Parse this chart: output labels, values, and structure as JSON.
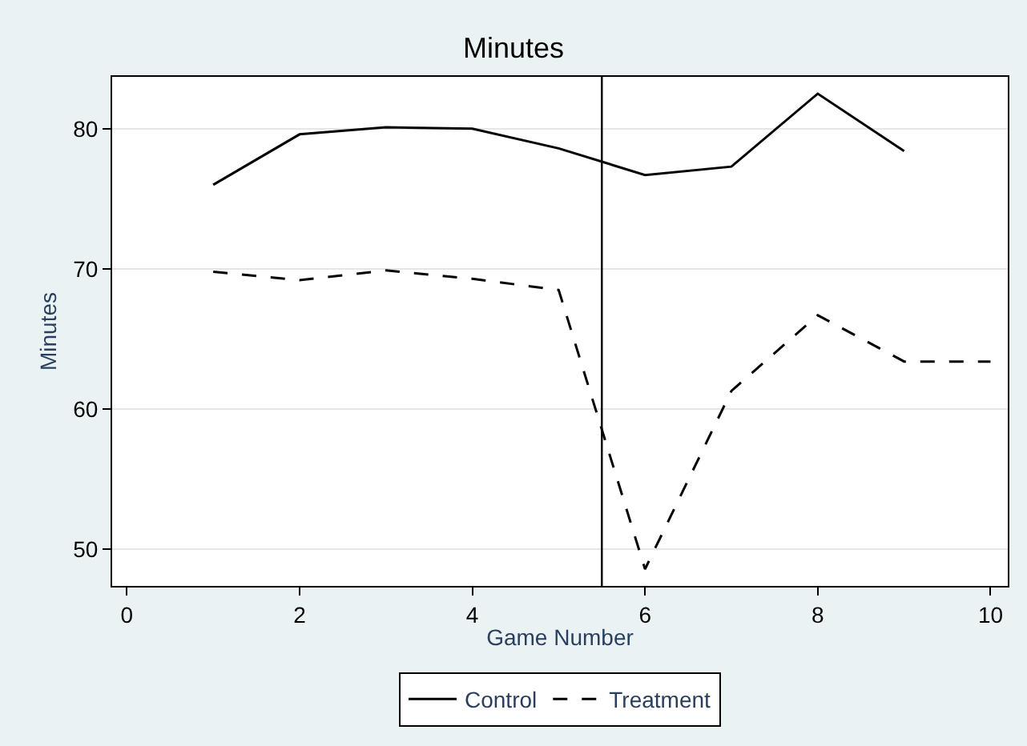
{
  "chart_data": {
    "type": "line",
    "title": "Minutes",
    "xlabel": "Game Number",
    "ylabel": "Minutes",
    "x": [
      1,
      2,
      3,
      4,
      5,
      6,
      7,
      8,
      9,
      10
    ],
    "series": [
      {
        "name": "Control",
        "color": "#000000",
        "line_style": "solid",
        "values": [
          76.0,
          79.6,
          80.1,
          80.0,
          78.6,
          76.7,
          77.3,
          82.5,
          78.4,
          null
        ]
      },
      {
        "name": "Treatment",
        "color": "#000000",
        "line_style": "dashed",
        "values": [
          69.8,
          69.2,
          69.9,
          69.3,
          68.5,
          48.6,
          61.3,
          66.7,
          63.4,
          63.4
        ]
      }
    ],
    "xlim": [
      -0.17,
      10.2
    ],
    "xticks": [
      0,
      2,
      4,
      6,
      8,
      10
    ],
    "ylim": [
      47.4,
      83.7
    ],
    "yticks": [
      50,
      60,
      70,
      80
    ],
    "ref_lines": [
      {
        "axis": "x",
        "value": 5.5,
        "color": "#000000"
      }
    ],
    "grid": "y",
    "legend": "bottom",
    "marker": "none"
  }
}
